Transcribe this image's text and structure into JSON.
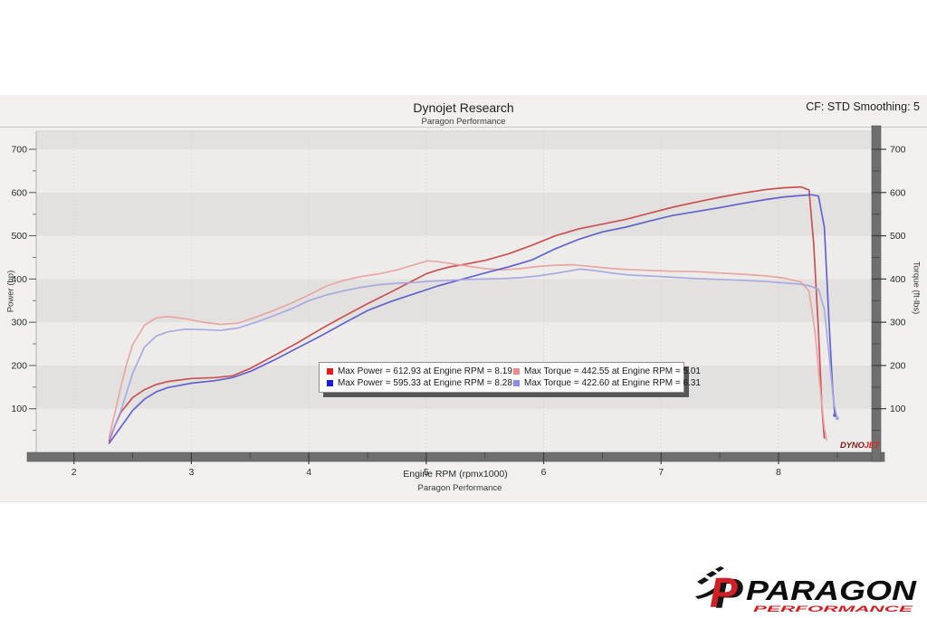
{
  "header": {
    "title": "Dynojet Research",
    "subtitle": "Paragon Performance",
    "cf_label": "CF: STD Smoothing: 5"
  },
  "footer": {
    "xlabel": "Engine RPM (rpmx1000)",
    "sublabel": "Paragon Performance"
  },
  "branding": {
    "dynojet_part1": "DYNO",
    "dynojet_part2": "JET",
    "paragon_name": "PARAGON",
    "paragon_tagline": "PERFORMANCE",
    "paragon_mark": "P",
    "accent_red": "#cf2026",
    "accent_black": "#0c0c0c"
  },
  "chart_data": {
    "type": "line",
    "title": "Dynojet Research",
    "subtitle": "Paragon Performance",
    "xlabel": "Engine RPM (rpmx1000)",
    "ylabel_left": "Power (hp)",
    "ylabel_right": "Torque (ft-lbs)",
    "xlim": [
      1.68,
      8.8
    ],
    "ylim": [
      0,
      742
    ],
    "x_ticks": [
      2,
      3,
      4,
      5,
      6,
      7,
      8
    ],
    "x_minor_step": 0.5,
    "y_ticks": [
      100,
      200,
      300,
      400,
      500,
      600,
      700
    ],
    "y_minor_step": 50,
    "grid": "horizontal-bands-and-dotted-vertical",
    "band_light": "#edecea",
    "band_dark": "#e2e1df",
    "legend_position": "center",
    "series": [
      {
        "name": "power-run-1",
        "legend_label": "Max Power = 612.93 at Engine RPM = 8.19",
        "axis": "left-hp",
        "color": "#c84a4a",
        "legend_color": "#e81c1c",
        "max": {
          "value": 612.93,
          "rpm": 8.19
        },
        "end_dot": false,
        "points": [
          [
            2.3,
            25
          ],
          [
            2.35,
            62
          ],
          [
            2.4,
            92
          ],
          [
            2.5,
            126
          ],
          [
            2.6,
            144
          ],
          [
            2.7,
            156
          ],
          [
            2.8,
            163
          ],
          [
            3.0,
            170
          ],
          [
            3.2,
            172
          ],
          [
            3.35,
            176
          ],
          [
            3.5,
            193
          ],
          [
            3.7,
            222
          ],
          [
            3.9,
            252
          ],
          [
            4.1,
            284
          ],
          [
            4.3,
            314
          ],
          [
            4.5,
            343
          ],
          [
            4.7,
            370
          ],
          [
            4.9,
            398
          ],
          [
            5.0,
            412
          ],
          [
            5.1,
            421
          ],
          [
            5.2,
            428
          ],
          [
            5.35,
            435
          ],
          [
            5.5,
            443
          ],
          [
            5.7,
            458
          ],
          [
            5.9,
            478
          ],
          [
            6.1,
            500
          ],
          [
            6.3,
            516
          ],
          [
            6.5,
            527
          ],
          [
            6.7,
            538
          ],
          [
            6.9,
            552
          ],
          [
            7.1,
            566
          ],
          [
            7.3,
            578
          ],
          [
            7.5,
            589
          ],
          [
            7.7,
            599
          ],
          [
            7.9,
            607
          ],
          [
            8.05,
            611
          ],
          [
            8.19,
            613
          ],
          [
            8.26,
            606
          ],
          [
            8.3,
            480
          ],
          [
            8.34,
            280
          ],
          [
            8.37,
            100
          ],
          [
            8.39,
            32
          ]
        ]
      },
      {
        "name": "torque-run-1",
        "legend_label": "Max Torque = 442.55 at Engine RPM = 5.01",
        "axis": "right-ftlbs",
        "color": "#e8a2a0",
        "legend_color": "#f08a8a",
        "max": {
          "value": 442.55,
          "rpm": 5.01
        },
        "end_dot": false,
        "points": [
          [
            2.3,
            35
          ],
          [
            2.35,
            92
          ],
          [
            2.4,
            152
          ],
          [
            2.45,
            205
          ],
          [
            2.5,
            248
          ],
          [
            2.6,
            293
          ],
          [
            2.7,
            310
          ],
          [
            2.8,
            313
          ],
          [
            2.95,
            308
          ],
          [
            3.1,
            300
          ],
          [
            3.25,
            295
          ],
          [
            3.4,
            298
          ],
          [
            3.55,
            312
          ],
          [
            3.7,
            327
          ],
          [
            3.85,
            344
          ],
          [
            4.0,
            363
          ],
          [
            4.15,
            384
          ],
          [
            4.3,
            397
          ],
          [
            4.45,
            406
          ],
          [
            4.6,
            412
          ],
          [
            4.75,
            421
          ],
          [
            4.9,
            433
          ],
          [
            5.01,
            442
          ],
          [
            5.1,
            440
          ],
          [
            5.2,
            436
          ],
          [
            5.35,
            430
          ],
          [
            5.5,
            424
          ],
          [
            5.65,
            421
          ],
          [
            5.8,
            424
          ],
          [
            5.95,
            429
          ],
          [
            6.1,
            432
          ],
          [
            6.25,
            433
          ],
          [
            6.4,
            429
          ],
          [
            6.55,
            425
          ],
          [
            6.7,
            422
          ],
          [
            6.9,
            420
          ],
          [
            7.1,
            418
          ],
          [
            7.3,
            417
          ],
          [
            7.5,
            414
          ],
          [
            7.7,
            411
          ],
          [
            7.9,
            407
          ],
          [
            8.05,
            402
          ],
          [
            8.19,
            393
          ],
          [
            8.26,
            372
          ],
          [
            8.31,
            280
          ],
          [
            8.35,
            160
          ],
          [
            8.39,
            55
          ],
          [
            8.41,
            28
          ]
        ]
      },
      {
        "name": "power-run-2",
        "legend_label": "Max Power = 595.33 at Engine RPM = 8.28",
        "axis": "left-hp",
        "color": "#5c5cce",
        "legend_color": "#1c1ce0",
        "max": {
          "value": 595.33,
          "rpm": 8.28
        },
        "end_dot": true,
        "points": [
          [
            2.3,
            20
          ],
          [
            2.4,
            58
          ],
          [
            2.5,
            96
          ],
          [
            2.6,
            122
          ],
          [
            2.7,
            139
          ],
          [
            2.8,
            149
          ],
          [
            3.0,
            159
          ],
          [
            3.2,
            165
          ],
          [
            3.35,
            172
          ],
          [
            3.5,
            186
          ],
          [
            3.7,
            212
          ],
          [
            3.9,
            240
          ],
          [
            4.1,
            268
          ],
          [
            4.3,
            298
          ],
          [
            4.5,
            327
          ],
          [
            4.7,
            348
          ],
          [
            4.9,
            366
          ],
          [
            5.1,
            384
          ],
          [
            5.3,
            399
          ],
          [
            5.5,
            414
          ],
          [
            5.7,
            428
          ],
          [
            5.9,
            444
          ],
          [
            6.1,
            470
          ],
          [
            6.3,
            492
          ],
          [
            6.5,
            509
          ],
          [
            6.7,
            520
          ],
          [
            6.9,
            534
          ],
          [
            7.1,
            547
          ],
          [
            7.3,
            556
          ],
          [
            7.5,
            565
          ],
          [
            7.7,
            575
          ],
          [
            7.9,
            584
          ],
          [
            8.05,
            590
          ],
          [
            8.19,
            593
          ],
          [
            8.28,
            595
          ],
          [
            8.34,
            592
          ],
          [
            8.39,
            520
          ],
          [
            8.43,
            300
          ],
          [
            8.46,
            150
          ],
          [
            8.48,
            85
          ]
        ]
      },
      {
        "name": "torque-run-2",
        "legend_label": "Max Torque = 422.60 at Engine RPM = 6.31",
        "axis": "right-ftlbs",
        "color": "#a6a6e2",
        "legend_color": "#8c8cf0",
        "max": {
          "value": 422.6,
          "rpm": 6.31
        },
        "end_dot": true,
        "points": [
          [
            2.3,
            30
          ],
          [
            2.4,
            96
          ],
          [
            2.5,
            182
          ],
          [
            2.6,
            242
          ],
          [
            2.7,
            268
          ],
          [
            2.8,
            278
          ],
          [
            2.95,
            284
          ],
          [
            3.1,
            283
          ],
          [
            3.25,
            281
          ],
          [
            3.4,
            287
          ],
          [
            3.55,
            300
          ],
          [
            3.7,
            315
          ],
          [
            3.85,
            331
          ],
          [
            4.0,
            350
          ],
          [
            4.15,
            363
          ],
          [
            4.3,
            373
          ],
          [
            4.45,
            381
          ],
          [
            4.6,
            387
          ],
          [
            4.75,
            390
          ],
          [
            4.9,
            392
          ],
          [
            5.05,
            395
          ],
          [
            5.2,
            397
          ],
          [
            5.35,
            399
          ],
          [
            5.5,
            400
          ],
          [
            5.65,
            401
          ],
          [
            5.8,
            403
          ],
          [
            5.95,
            407
          ],
          [
            6.1,
            413
          ],
          [
            6.31,
            423
          ],
          [
            6.45,
            419
          ],
          [
            6.6,
            413
          ],
          [
            6.75,
            409
          ],
          [
            6.9,
            407
          ],
          [
            7.1,
            404
          ],
          [
            7.3,
            401
          ],
          [
            7.5,
            399
          ],
          [
            7.7,
            397
          ],
          [
            7.9,
            394
          ],
          [
            8.05,
            391
          ],
          [
            8.19,
            388
          ],
          [
            8.28,
            383
          ],
          [
            8.34,
            376
          ],
          [
            8.39,
            330
          ],
          [
            8.43,
            225
          ],
          [
            8.47,
            115
          ],
          [
            8.5,
            78
          ]
        ]
      }
    ]
  }
}
